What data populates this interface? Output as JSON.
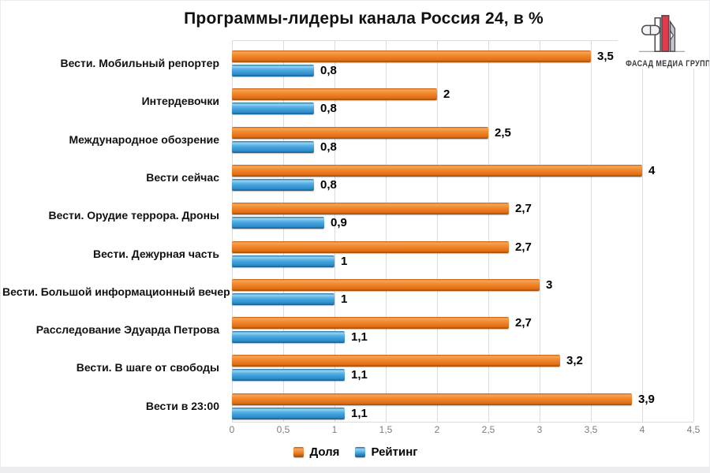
{
  "logo": {
    "text": "ФАСАД МЕДИА ГРУПП"
  },
  "chart_data": {
    "type": "bar",
    "orientation": "horizontal",
    "title": "Программы-лидеры канала Россия 24, в %",
    "categories": [
      "Вести. Мобильный репортер",
      "Интердевочки",
      "Международное обозрение",
      "Вести сейчас",
      "Вести. Орудие террора. Дроны",
      "Вести. Дежурная часть",
      "Вести. Большой информационный вечер",
      "Расследование Эдуарда Петрова",
      "Вести. В шаге от свободы",
      "Вести в 23:00"
    ],
    "series": [
      {
        "name": "Доля",
        "color": "#ED7D23",
        "values": [
          3.5,
          2,
          2.5,
          4,
          2.7,
          2.7,
          3,
          2.7,
          3.2,
          3.9
        ],
        "labels": [
          "3,5",
          "2",
          "2,5",
          "4",
          "2,7",
          "2,7",
          "3",
          "2,7",
          "3,2",
          "3,9"
        ]
      },
      {
        "name": "Рейтинг",
        "color": "#3F9FDB",
        "values": [
          0.8,
          0.8,
          0.8,
          0.8,
          0.9,
          1,
          1,
          1.1,
          1.1,
          1.1
        ],
        "labels": [
          "0,8",
          "0,8",
          "0,8",
          "0,8",
          "0,9",
          "1",
          "1",
          "1,1",
          "1,1",
          "1,1"
        ]
      }
    ],
    "xlim": [
      0,
      4.5
    ],
    "x_ticks": [
      "0",
      "0,5",
      "1",
      "1,5",
      "2",
      "2,5",
      "3",
      "3,5",
      "4",
      "4,5"
    ],
    "grid": true,
    "legend_position": "bottom"
  }
}
